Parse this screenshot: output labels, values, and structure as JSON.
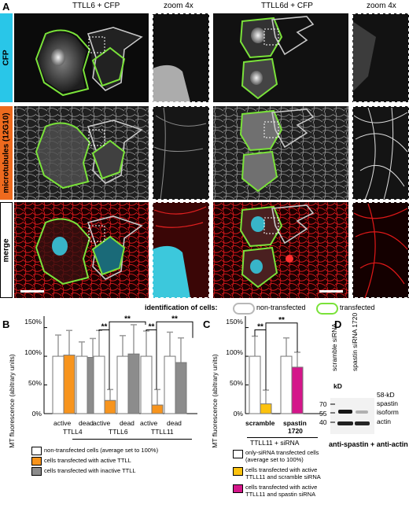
{
  "panel_a": {
    "label": "A",
    "col_headers": [
      "TTLL6 + CFP",
      "zoom 4x",
      "TTLL6d + CFP",
      "zoom 4x"
    ],
    "row_labels": [
      "CFP",
      "microtubules (12G10)",
      "merge"
    ],
    "row_colors": [
      "#29c6e8",
      "#ee6a1e",
      "#ffffff"
    ],
    "identification": {
      "title": "identification of cells:",
      "non_transfected": "non-transfected",
      "transfected": "transfected",
      "non_color": "#b8b8b8",
      "trans_color": "#7ae23a"
    }
  },
  "panel_b": {
    "label": "B",
    "ylabel": "MT fluorescence (abitrary units)",
    "yticks": [
      "0%",
      "50%",
      "100%",
      "150%"
    ],
    "bar_labels": [
      "active",
      "dead",
      "active",
      "dead",
      "active",
      "dead"
    ],
    "group_labels": [
      "TTLL4",
      "TTLL6",
      "TTLL11"
    ],
    "sig": "**",
    "legend": [
      "non-transfected cells (average set to 100%)",
      "cells transfected with active TTLL",
      "cells transfected with inactive TTLL"
    ]
  },
  "panel_c": {
    "label": "C",
    "ylabel": "MT fluorescence (abitrary units)",
    "yticks": [
      "0%",
      "50%",
      "100%",
      "150%"
    ],
    "bar_label_1": "scramble",
    "bar_label_2a": "spastin",
    "bar_label_2b": "1720",
    "group_label": "TTLL11 + siRNA",
    "sig": "**",
    "legend": [
      "only-siRNA transfected cells",
      "(average set to 100%)",
      "cells transfected with active",
      "TTLL11 and scramble siRNA",
      "cells transfected with active",
      "TTLL11 and spastin siRNA"
    ]
  },
  "panel_d": {
    "label": "D",
    "lanes": [
      "scramble siRNA",
      "spastin siRNA 1720"
    ],
    "kd": "kD",
    "markers": [
      "70",
      "55",
      "40"
    ],
    "band_labels": [
      "58-kD",
      "spastin",
      "isoform",
      "actin"
    ],
    "footer": "anti-spastin + anti-actin"
  },
  "chart_data": [
    {
      "type": "bar",
      "title": "",
      "ylabel": "MT fluorescence (abitrary units)",
      "ylim": [
        0,
        170
      ],
      "groups": [
        "TTLL4",
        "TTLL6",
        "TTLL11"
      ],
      "categories": [
        "active",
        "dead",
        "active",
        "dead",
        "active",
        "dead"
      ],
      "series": [
        {
          "name": "non-transfected cells (average set to 100%)",
          "values": [
            100,
            100,
            100,
            100,
            100,
            100
          ],
          "errors": [
            37,
            25,
            45,
            36,
            44,
            42
          ],
          "color": "#ffffff"
        },
        {
          "name": "cells transfected with active TTLL",
          "values": [
            102,
            null,
            23,
            null,
            15,
            null
          ],
          "errors": [
            43,
            null,
            19,
            null,
            27,
            null
          ],
          "color": "#f7941d"
        },
        {
          "name": "cells transfected with inactive TTLL",
          "values": [
            null,
            98,
            null,
            104,
            null,
            89
          ],
          "errors": [
            null,
            33,
            null,
            51,
            null,
            43
          ],
          "color": "#8c8c8c"
        }
      ],
      "significance": [
        [
          "TTLL6",
          "**"
        ],
        [
          "TTLL6",
          "**"
        ],
        [
          "TTLL11",
          "**"
        ],
        [
          "TTLL11",
          "**"
        ]
      ]
    },
    {
      "type": "bar",
      "title": "",
      "ylabel": "MT fluorescence (abitrary units)",
      "ylim": [
        0,
        170
      ],
      "categories": [
        "scramble",
        "spastin 1720"
      ],
      "series": [
        {
          "name": "only-siRNA transfected cells (average set to 100%)",
          "values": [
            100,
            100
          ],
          "errors": [
            35,
            32
          ],
          "color": "#ffffff"
        },
        {
          "name": "cells transfected with active TTLL11 and scramble siRNA",
          "values": [
            17,
            null
          ],
          "errors": [
            24,
            null
          ],
          "color": "#fcc20e"
        },
        {
          "name": "cells transfected with active TTLL11 and spastin siRNA",
          "values": [
            null,
            81
          ],
          "errors": [
            null,
            26
          ],
          "color": "#d4168a"
        }
      ]
    }
  ]
}
